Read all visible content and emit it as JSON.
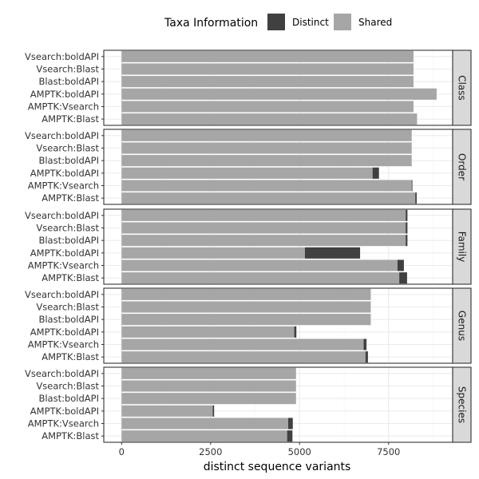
{
  "chart_data": {
    "type": "bar",
    "orientation": "horizontal",
    "stacked": true,
    "xlabel": "distinct sequence variants",
    "xlim": [
      -500,
      9300
    ],
    "xticks": [
      0,
      2500,
      5000,
      7500
    ],
    "xtick_labels": [
      "0",
      "2500",
      "5000",
      "7500"
    ],
    "grid": true,
    "legend": {
      "title": "Taxa Information",
      "placement": "top",
      "entries": [
        {
          "name": "Distinct",
          "color": "#404040"
        },
        {
          "name": "Shared",
          "color": "#a6a6a6"
        }
      ]
    },
    "categories": [
      "Vsearch:boldAPI",
      "Vsearch:Blast",
      "Blast:boldAPI",
      "AMPTK:boldAPI",
      "AMPTK:Vsearch",
      "AMPTK:Blast"
    ],
    "facets": [
      {
        "label": "Class",
        "shared": [
          8200,
          8200,
          8200,
          8850,
          8200,
          8300
        ],
        "distinct": [
          0,
          0,
          0,
          0,
          0,
          0
        ]
      },
      {
        "label": "Order",
        "shared": [
          8150,
          8150,
          8150,
          7050,
          8150,
          8250
        ],
        "distinct": [
          0,
          0,
          0,
          180,
          20,
          40
        ]
      },
      {
        "label": "Family",
        "shared": [
          7980,
          7980,
          7980,
          5150,
          7750,
          7800
        ],
        "distinct": [
          50,
          50,
          50,
          1550,
          180,
          220
        ]
      },
      {
        "label": "Genus",
        "shared": [
          7000,
          7000,
          7000,
          4850,
          6800,
          6850
        ],
        "distinct": [
          0,
          0,
          0,
          60,
          80,
          70
        ]
      },
      {
        "label": "Species",
        "shared": [
          4900,
          4900,
          4900,
          2560,
          4680,
          4650
        ],
        "distinct": [
          0,
          0,
          0,
          40,
          130,
          150
        ]
      }
    ],
    "colors": {
      "shared": "#a6a6a6",
      "distinct": "#404040",
      "panel_border": "#333333",
      "grid_major": "#ebebeb",
      "grid_minor": "#f5f5f5",
      "strip_fill": "#d9d9d9"
    }
  }
}
